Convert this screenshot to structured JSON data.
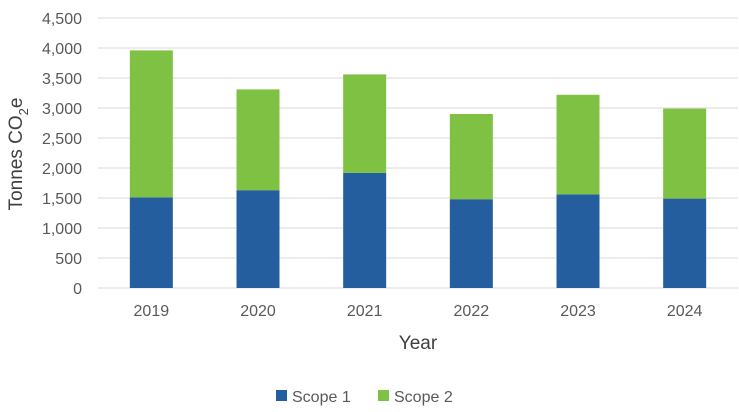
{
  "chart_data": {
    "type": "bar",
    "stacked": true,
    "categories": [
      "2019",
      "2020",
      "2021",
      "2022",
      "2023",
      "2024"
    ],
    "series": [
      {
        "name": "Scope 1",
        "color": "#255E9E",
        "values": [
          1510,
          1630,
          1920,
          1480,
          1560,
          1490
        ]
      },
      {
        "name": "Scope 2",
        "color": "#7FC142",
        "values": [
          2450,
          1680,
          1640,
          1420,
          1660,
          1500
        ]
      }
    ],
    "xlabel": "Year",
    "ylabel": {
      "main": "Tonnes CO",
      "sub": "2",
      "tail": "e"
    },
    "ylim": [
      0,
      4500
    ],
    "yticks": [
      0,
      500,
      1000,
      1500,
      2000,
      2500,
      3000,
      3500,
      4000,
      4500
    ],
    "ytick_labels": [
      "0",
      "500",
      "1,000",
      "1,500",
      "2,000",
      "2,500",
      "3,000",
      "3,500",
      "4,000",
      "4,500"
    ],
    "grid": true,
    "gridline_color": "#D9D9D9",
    "legend_position": "bottom"
  }
}
